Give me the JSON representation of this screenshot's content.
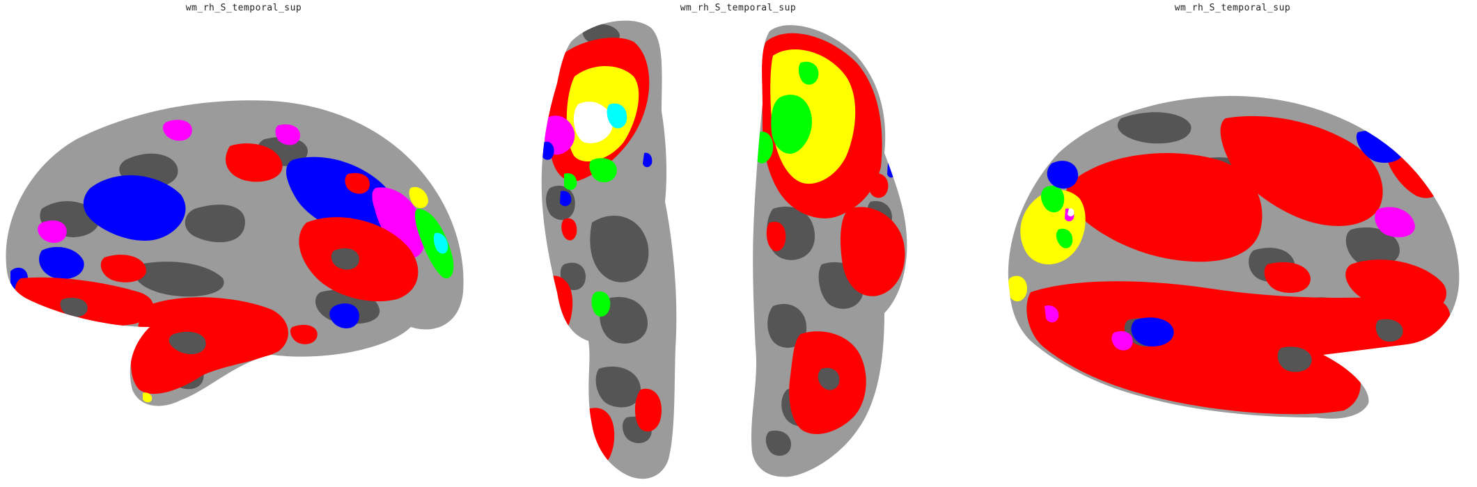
{
  "panels": [
    {
      "title": "wm_rh_S_temporal_sup",
      "view": "lateral"
    },
    {
      "title": "wm_rh_S_temporal_sup",
      "view": "ventral"
    },
    {
      "title": "wm_rh_S_temporal_sup",
      "view": "medial"
    }
  ],
  "colors": {
    "sulcus_gray": "#555555",
    "gyrus_gray": "#9b9b9b",
    "red": "#ff0000",
    "blue": "#0000ff",
    "magenta": "#ff00ff",
    "yellow": "#ffff00",
    "green": "#00ff00",
    "cyan": "#00ffff",
    "white": "#ffffff"
  }
}
